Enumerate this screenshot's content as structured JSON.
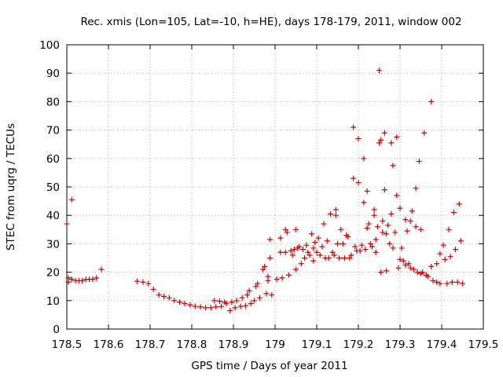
{
  "chart_data": {
    "type": "scatter",
    "title": "Rec. xmis (Lon=105, Lat=-10, h=HE), days 178-179, 2011, window 002",
    "xlabel": "GPS time / Days of year 2011",
    "ylabel": "STEC from uqrg / TECUs",
    "xlim": [
      178.5,
      179.5
    ],
    "ylim": [
      0,
      100
    ],
    "xticks": [
      178.5,
      178.6,
      178.7,
      178.8,
      178.9,
      179.0,
      179.1,
      179.2,
      179.3,
      179.4,
      179.5
    ],
    "xtick_labels": [
      "178.5",
      "178.6",
      "178.7",
      "178.8",
      "178.9",
      "179",
      "179.1",
      "179.2",
      "179.3",
      "179.4",
      "179.5"
    ],
    "yticks": [
      0,
      10,
      20,
      30,
      40,
      50,
      60,
      70,
      80,
      90,
      100
    ],
    "ytick_labels": [
      "0",
      "10",
      "20",
      "30",
      "40",
      "50",
      "60",
      "70",
      "80",
      "90",
      "100"
    ],
    "grid": true,
    "marker": "+",
    "color": "#cc0000",
    "series": [
      {
        "points": [
          [
            178.5,
            37.0
          ],
          [
            178.504,
            18.0
          ],
          [
            178.504,
            16.5
          ],
          [
            178.512,
            45.5
          ],
          [
            178.512,
            17.5
          ],
          [
            178.521,
            17.0
          ],
          [
            178.529,
            17.0
          ],
          [
            178.537,
            17.0
          ],
          [
            178.546,
            17.5
          ],
          [
            178.554,
            17.5
          ],
          [
            178.562,
            17.5
          ],
          [
            178.571,
            18.0
          ],
          [
            178.583,
            21.0
          ],
          [
            178.669,
            16.8
          ],
          [
            178.683,
            16.5
          ],
          [
            178.696,
            16.0
          ],
          [
            178.708,
            14.0
          ],
          [
            178.721,
            12.0
          ],
          [
            178.733,
            11.5
          ],
          [
            178.746,
            11.0
          ],
          [
            178.758,
            10.0
          ],
          [
            178.771,
            9.5
          ],
          [
            178.783,
            9.0
          ],
          [
            178.796,
            8.5
          ],
          [
            178.808,
            8.0
          ],
          [
            178.821,
            7.8
          ],
          [
            178.833,
            7.5
          ],
          [
            178.846,
            7.5
          ],
          [
            178.854,
            10.0
          ],
          [
            178.858,
            7.8
          ],
          [
            178.867,
            9.8
          ],
          [
            178.871,
            8.0
          ],
          [
            178.879,
            9.5
          ],
          [
            178.883,
            9.0
          ],
          [
            178.892,
            6.5
          ],
          [
            178.896,
            9.5
          ],
          [
            178.904,
            7.5
          ],
          [
            178.908,
            10.0
          ],
          [
            178.917,
            8.0
          ],
          [
            178.921,
            11.0
          ],
          [
            178.929,
            8.2
          ],
          [
            178.933,
            12.0
          ],
          [
            178.938,
            13.5
          ],
          [
            178.942,
            9.0
          ],
          [
            178.95,
            10.0
          ],
          [
            178.954,
            15.0
          ],
          [
            178.958,
            16.0
          ],
          [
            178.963,
            11.0
          ],
          [
            178.971,
            21.0
          ],
          [
            178.975,
            22.0
          ],
          [
            178.979,
            12.5
          ],
          [
            178.983,
            17.0
          ],
          [
            178.983,
            18.5
          ],
          [
            178.988,
            25.0
          ],
          [
            178.988,
            31.5
          ],
          [
            178.992,
            12.0
          ],
          [
            179.004,
            17.5
          ],
          [
            179.013,
            32.0
          ],
          [
            179.013,
            27.0
          ],
          [
            179.017,
            18.0
          ],
          [
            179.025,
            35.0
          ],
          [
            179.025,
            27.0
          ],
          [
            179.029,
            34.0
          ],
          [
            179.033,
            19.0
          ],
          [
            179.038,
            27.5
          ],
          [
            179.042,
            26.0
          ],
          [
            179.046,
            28.0
          ],
          [
            179.05,
            35.0
          ],
          [
            179.05,
            21.0
          ],
          [
            179.054,
            28.5
          ],
          [
            179.058,
            29.0
          ],
          [
            179.063,
            23.0
          ],
          [
            179.067,
            28.0
          ],
          [
            179.071,
            25.0
          ],
          [
            179.075,
            29.5
          ],
          [
            179.079,
            27.0
          ],
          [
            179.083,
            26.0
          ],
          [
            179.088,
            33.5
          ],
          [
            179.092,
            24.0
          ],
          [
            179.092,
            28.5
          ],
          [
            179.096,
            30.5
          ],
          [
            179.1,
            27.0
          ],
          [
            179.104,
            32.0
          ],
          [
            179.108,
            26.0
          ],
          [
            179.113,
            29.0
          ],
          [
            179.117,
            37.0
          ],
          [
            179.121,
            25.0
          ],
          [
            179.125,
            31.0
          ],
          [
            179.129,
            25.0
          ],
          [
            179.133,
            40.5
          ],
          [
            179.138,
            27.0
          ],
          [
            179.142,
            26.0
          ],
          [
            179.146,
            40.0
          ],
          [
            179.146,
            42.0
          ],
          [
            179.15,
            30.0
          ],
          [
            179.154,
            25.0
          ],
          [
            179.158,
            35.0
          ],
          [
            179.163,
            30.0
          ],
          [
            179.167,
            25.0
          ],
          [
            179.171,
            33.0
          ],
          [
            179.175,
            32.5
          ],
          [
            179.179,
            25.0
          ],
          [
            179.183,
            26.0
          ],
          [
            179.188,
            71.0
          ],
          [
            179.188,
            53.0
          ],
          [
            179.192,
            29.0
          ],
          [
            179.196,
            27.5
          ],
          [
            179.2,
            51.5
          ],
          [
            179.2,
            67.0
          ],
          [
            179.204,
            27.5
          ],
          [
            179.208,
            29.5
          ],
          [
            179.213,
            60.0
          ],
          [
            179.213,
            44.5
          ],
          [
            179.217,
            28.0
          ],
          [
            179.221,
            35.5
          ],
          [
            179.221,
            48.5
          ],
          [
            179.225,
            37.0
          ],
          [
            179.229,
            30.0
          ],
          [
            179.233,
            29.0
          ],
          [
            179.238,
            42.0
          ],
          [
            179.238,
            40.0
          ],
          [
            179.242,
            31.5
          ],
          [
            179.242,
            27.0
          ],
          [
            179.246,
            36.0
          ],
          [
            179.25,
            91.0
          ],
          [
            179.25,
            65.5
          ],
          [
            179.254,
            66.5
          ],
          [
            179.254,
            20.0
          ],
          [
            179.258,
            38.0
          ],
          [
            179.258,
            34.0
          ],
          [
            179.263,
            69.0
          ],
          [
            179.263,
            49.0
          ],
          [
            179.267,
            33.5
          ],
          [
            179.267,
            20.5
          ],
          [
            179.271,
            36.5
          ],
          [
            179.275,
            30.0
          ],
          [
            179.279,
            65.5
          ],
          [
            179.279,
            40.5
          ],
          [
            179.283,
            57.5
          ],
          [
            179.283,
            28.5
          ],
          [
            179.288,
            34.0
          ],
          [
            179.292,
            67.5
          ],
          [
            179.292,
            47.0
          ],
          [
            179.296,
            21.5
          ],
          [
            179.3,
            42.5
          ],
          [
            179.3,
            24.5
          ],
          [
            179.304,
            28.5
          ],
          [
            179.308,
            24.0
          ],
          [
            179.313,
            38.5
          ],
          [
            179.313,
            22.5
          ],
          [
            179.317,
            34.5
          ],
          [
            179.321,
            23.0
          ],
          [
            179.325,
            38.0
          ],
          [
            179.325,
            21.5
          ],
          [
            179.329,
            41.5
          ],
          [
            179.333,
            21.0
          ],
          [
            179.338,
            49.5
          ],
          [
            179.338,
            36.0
          ],
          [
            179.342,
            20.0
          ],
          [
            179.346,
            59.0
          ],
          [
            179.35,
            35.0
          ],
          [
            179.35,
            19.5
          ],
          [
            179.354,
            20.0
          ],
          [
            179.358,
            69.0
          ],
          [
            179.363,
            19.0
          ],
          [
            179.367,
            18.5
          ],
          [
            179.375,
            80.0
          ],
          [
            179.375,
            22.0
          ],
          [
            179.379,
            17.0
          ],
          [
            179.388,
            23.0
          ],
          [
            179.388,
            16.5
          ],
          [
            179.396,
            26.5
          ],
          [
            179.396,
            16.0
          ],
          [
            179.404,
            29.5
          ],
          [
            179.408,
            24.5
          ],
          [
            179.413,
            16.0
          ],
          [
            179.417,
            35.0
          ],
          [
            179.421,
            25.5
          ],
          [
            179.425,
            16.5
          ],
          [
            179.429,
            41.0
          ],
          [
            179.433,
            28.0
          ],
          [
            179.438,
            16.5
          ],
          [
            179.442,
            44.0
          ],
          [
            179.446,
            31.0
          ],
          [
            179.45,
            16.0
          ]
        ]
      }
    ]
  }
}
